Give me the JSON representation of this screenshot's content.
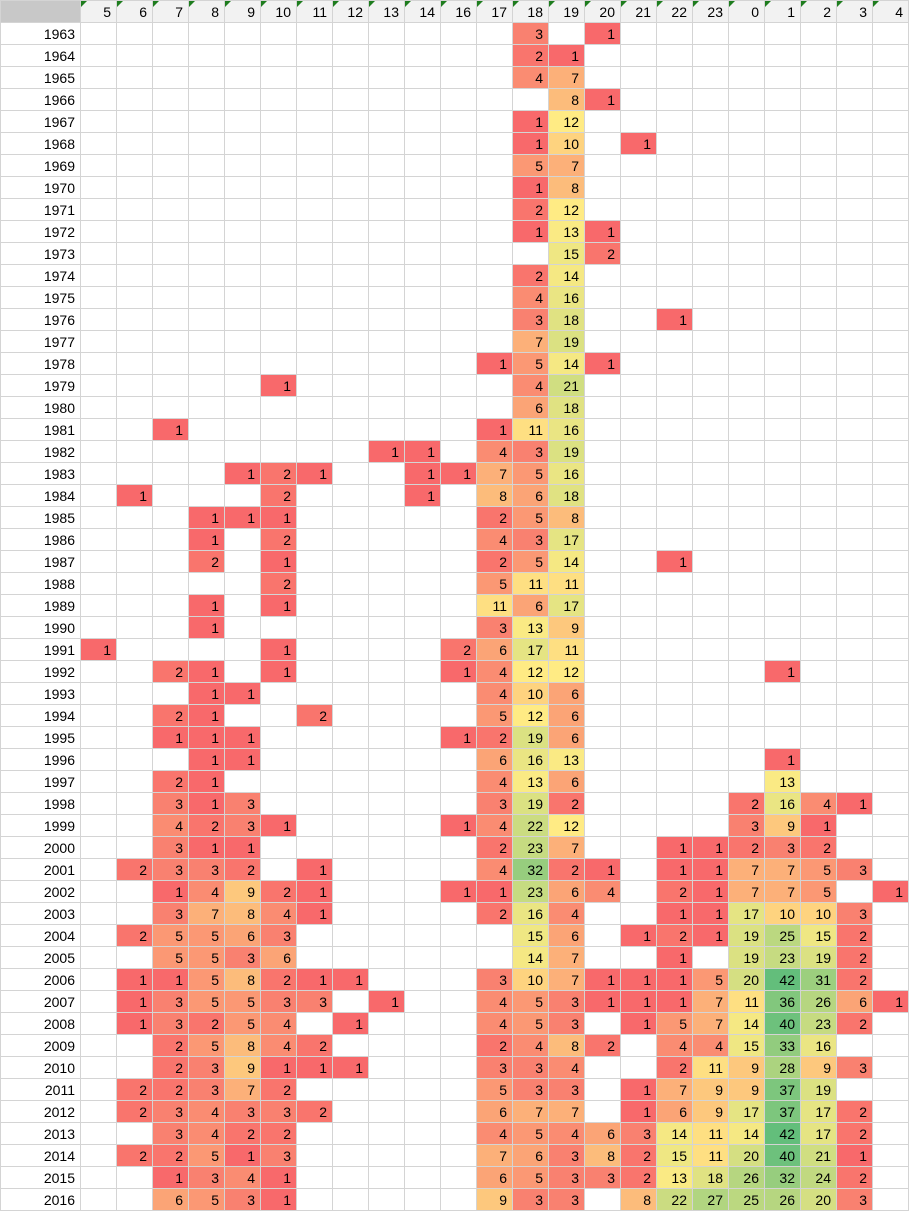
{
  "sheet": {
    "columns": [
      "5",
      "6",
      "7",
      "8",
      "9",
      "10",
      "11",
      "12",
      "13",
      "14",
      "16",
      "17",
      "18",
      "19",
      "20",
      "21",
      "22",
      "23",
      "0",
      "1",
      "2",
      "3",
      "4"
    ],
    "rows": [
      {
        "year": "1963",
        "v": {
          "18": 3,
          "20": 1
        }
      },
      {
        "year": "1964",
        "v": {
          "18": 2,
          "19": 1
        }
      },
      {
        "year": "1965",
        "v": {
          "18": 4,
          "19": 7
        }
      },
      {
        "year": "1966",
        "v": {
          "19": 8,
          "20": 1
        }
      },
      {
        "year": "1967",
        "v": {
          "18": 1,
          "19": 12
        }
      },
      {
        "year": "1968",
        "v": {
          "18": 1,
          "19": 10,
          "21": 1
        }
      },
      {
        "year": "1969",
        "v": {
          "18": 5,
          "19": 7
        }
      },
      {
        "year": "1970",
        "v": {
          "18": 1,
          "19": 8
        }
      },
      {
        "year": "1971",
        "v": {
          "18": 2,
          "19": 12
        }
      },
      {
        "year": "1972",
        "v": {
          "18": 1,
          "19": 13,
          "20": 1
        }
      },
      {
        "year": "1973",
        "v": {
          "19": 15,
          "20": 2
        }
      },
      {
        "year": "1974",
        "v": {
          "18": 2,
          "19": 14
        }
      },
      {
        "year": "1975",
        "v": {
          "18": 4,
          "19": 16
        }
      },
      {
        "year": "1976",
        "v": {
          "18": 3,
          "19": 18,
          "22": 1
        }
      },
      {
        "year": "1977",
        "v": {
          "18": 7,
          "19": 19
        }
      },
      {
        "year": "1978",
        "v": {
          "17": 1,
          "18": 5,
          "19": 14,
          "20": 1
        }
      },
      {
        "year": "1979",
        "v": {
          "10": 1,
          "18": 4,
          "19": 21
        }
      },
      {
        "year": "1980",
        "v": {
          "18": 6,
          "19": 18
        }
      },
      {
        "year": "1981",
        "v": {
          "7": 1,
          "17": 1,
          "18": 11,
          "19": 16
        }
      },
      {
        "year": "1982",
        "v": {
          "13": 1,
          "14": 1,
          "17": 4,
          "18": 3,
          "19": 19
        }
      },
      {
        "year": "1983",
        "v": {
          "9": 1,
          "10": 2,
          "11": 1,
          "14": 1,
          "16": 1,
          "17": 7,
          "18": 5,
          "19": 16
        }
      },
      {
        "year": "1984",
        "v": {
          "6": 1,
          "10": 2,
          "14": 1,
          "17": 8,
          "18": 6,
          "19": 18
        }
      },
      {
        "year": "1985",
        "v": {
          "8": 1,
          "9": 1,
          "10": 1,
          "17": 2,
          "18": 5,
          "19": 8
        }
      },
      {
        "year": "1986",
        "v": {
          "8": 1,
          "10": 2,
          "17": 4,
          "18": 3,
          "19": 17
        }
      },
      {
        "year": "1987",
        "v": {
          "8": 2,
          "10": 1,
          "17": 2,
          "18": 5,
          "19": 14,
          "22": 1
        }
      },
      {
        "year": "1988",
        "v": {
          "10": 2,
          "17": 5,
          "18": 11,
          "19": 11
        }
      },
      {
        "year": "1989",
        "v": {
          "8": 1,
          "10": 1,
          "17": 11,
          "18": 6,
          "19": 17
        }
      },
      {
        "year": "1990",
        "v": {
          "8": 1,
          "17": 3,
          "18": 13,
          "19": 9
        }
      },
      {
        "year": "1991",
        "v": {
          "5": 1,
          "10": 1,
          "16": 2,
          "17": 6,
          "18": 17,
          "19": 11
        }
      },
      {
        "year": "1992",
        "v": {
          "7": 2,
          "8": 1,
          "10": 1,
          "16": 1,
          "17": 4,
          "18": 12,
          "19": 12,
          "1": 1
        }
      },
      {
        "year": "1993",
        "v": {
          "8": 1,
          "9": 1,
          "17": 4,
          "18": 10,
          "19": 6
        }
      },
      {
        "year": "1994",
        "v": {
          "7": 2,
          "8": 1,
          "11": 2,
          "17": 5,
          "18": 12,
          "19": 6
        }
      },
      {
        "year": "1995",
        "v": {
          "7": 1,
          "8": 1,
          "9": 1,
          "16": 1,
          "17": 2,
          "18": 19,
          "19": 6
        }
      },
      {
        "year": "1996",
        "v": {
          "8": 1,
          "9": 1,
          "17": 6,
          "18": 16,
          "19": 13,
          "1": 1
        }
      },
      {
        "year": "1997",
        "v": {
          "7": 2,
          "8": 1,
          "17": 4,
          "18": 13,
          "19": 6,
          "1": 13
        }
      },
      {
        "year": "1998",
        "v": {
          "7": 3,
          "8": 1,
          "9": 3,
          "17": 3,
          "18": 19,
          "19": 2,
          "0": 2,
          "1": 16,
          "2": 4,
          "3": 1
        }
      },
      {
        "year": "1999",
        "v": {
          "7": 4,
          "8": 2,
          "9": 3,
          "10": 1,
          "16": 1,
          "17": 4,
          "18": 22,
          "19": 12,
          "0": 3,
          "1": 9,
          "2": 1
        }
      },
      {
        "year": "2000",
        "v": {
          "7": 3,
          "8": 1,
          "9": 1,
          "17": 2,
          "18": 23,
          "19": 7,
          "22": 1,
          "23": 1,
          "0": 2,
          "1": 3,
          "2": 2
        }
      },
      {
        "year": "2001",
        "v": {
          "6": 2,
          "7": 3,
          "8": 3,
          "9": 2,
          "11": 1,
          "17": 4,
          "18": 32,
          "19": 2,
          "20": 1,
          "22": 1,
          "23": 1,
          "0": 7,
          "1": 7,
          "2": 5,
          "3": 3
        }
      },
      {
        "year": "2002",
        "v": {
          "7": 1,
          "8": 4,
          "9": 9,
          "10": 2,
          "11": 1,
          "16": 1,
          "17": 1,
          "18": 23,
          "19": 6,
          "20": 4,
          "22": 2,
          "23": 1,
          "0": 7,
          "1": 7,
          "2": 5,
          "4": 1
        }
      },
      {
        "year": "2003",
        "v": {
          "7": 3,
          "8": 7,
          "9": 8,
          "10": 4,
          "11": 1,
          "17": 2,
          "18": 16,
          "19": 4,
          "22": 1,
          "23": 1,
          "0": 17,
          "1": 10,
          "2": 10,
          "3": 3
        }
      },
      {
        "year": "2004",
        "v": {
          "6": 2,
          "7": 5,
          "8": 5,
          "9": 6,
          "10": 3,
          "18": 15,
          "19": 6,
          "21": 1,
          "22": 2,
          "23": 1,
          "0": 19,
          "1": 25,
          "2": 15,
          "3": 2
        }
      },
      {
        "year": "2005",
        "v": {
          "7": 5,
          "8": 5,
          "9": 3,
          "10": 6,
          "18": 14,
          "19": 7,
          "22": 1,
          "0": 19,
          "1": 23,
          "2": 19,
          "3": 2
        }
      },
      {
        "year": "2006",
        "v": {
          "6": 1,
          "7": 1,
          "8": 5,
          "9": 8,
          "10": 2,
          "11": 1,
          "12": 1,
          "17": 3,
          "18": 10,
          "19": 7,
          "20": 1,
          "21": 1,
          "22": 1,
          "23": 5,
          "0": 20,
          "1": 42,
          "2": 31,
          "3": 2
        }
      },
      {
        "year": "2007",
        "v": {
          "6": 1,
          "7": 3,
          "8": 5,
          "9": 5,
          "10": 3,
          "11": 3,
          "13": 1,
          "17": 4,
          "18": 5,
          "19": 3,
          "20": 1,
          "21": 1,
          "22": 1,
          "23": 7,
          "0": 11,
          "1": 36,
          "2": 26,
          "3": 6,
          "4": 1
        }
      },
      {
        "year": "2008",
        "v": {
          "6": 1,
          "7": 3,
          "8": 2,
          "9": 5,
          "10": 4,
          "12": 1,
          "17": 4,
          "18": 5,
          "19": 3,
          "21": 1,
          "22": 5,
          "23": 7,
          "0": 14,
          "1": 40,
          "2": 23,
          "3": 2
        }
      },
      {
        "year": "2009",
        "v": {
          "7": 2,
          "8": 5,
          "9": 8,
          "10": 4,
          "11": 2,
          "17": 2,
          "18": 4,
          "19": 8,
          "20": 2,
          "22": 4,
          "23": 4,
          "0": 15,
          "1": 33,
          "2": 16
        }
      },
      {
        "year": "2010",
        "v": {
          "7": 2,
          "8": 3,
          "9": 9,
          "10": 1,
          "11": 1,
          "12": 1,
          "17": 3,
          "18": 3,
          "19": 4,
          "22": 2,
          "23": 11,
          "0": 9,
          "1": 28,
          "2": 9,
          "3": 3
        }
      },
      {
        "year": "2011",
        "v": {
          "6": 2,
          "7": 2,
          "8": 3,
          "9": 7,
          "10": 2,
          "17": 5,
          "18": 3,
          "19": 3,
          "21": 1,
          "22": 7,
          "23": 9,
          "0": 9,
          "1": 37,
          "2": 19
        }
      },
      {
        "year": "2012",
        "v": {
          "6": 2,
          "7": 3,
          "8": 4,
          "9": 3,
          "10": 3,
          "11": 2,
          "17": 6,
          "18": 7,
          "19": 7,
          "21": 1,
          "22": 6,
          "23": 9,
          "0": 17,
          "1": 37,
          "2": 17,
          "3": 2
        }
      },
      {
        "year": "2013",
        "v": {
          "7": 3,
          "8": 4,
          "9": 2,
          "10": 2,
          "17": 4,
          "18": 5,
          "19": 4,
          "20": 6,
          "21": 3,
          "22": 14,
          "23": 11,
          "0": 14,
          "1": 42,
          "2": 17,
          "3": 2
        }
      },
      {
        "year": "2014",
        "v": {
          "6": 2,
          "7": 2,
          "8": 5,
          "9": 1,
          "10": 3,
          "17": 7,
          "18": 6,
          "19": 3,
          "20": 8,
          "21": 2,
          "22": 15,
          "23": 11,
          "0": 20,
          "1": 40,
          "2": 21,
          "3": 1
        }
      },
      {
        "year": "2015",
        "v": {
          "7": 1,
          "8": 3,
          "9": 4,
          "10": 1,
          "17": 6,
          "18": 5,
          "19": 3,
          "20": 3,
          "21": 2,
          "22": 13,
          "23": 18,
          "0": 26,
          "1": 32,
          "2": 24,
          "3": 2
        }
      },
      {
        "year": "2016",
        "v": {
          "7": 6,
          "8": 5,
          "9": 3,
          "10": 1,
          "17": 9,
          "18": 3,
          "19": 3,
          "21": 8,
          "22": 22,
          "23": 27,
          "0": 25,
          "1": 26,
          "2": 20,
          "3": 3
        }
      }
    ]
  },
  "colors": {
    "min": "#f8696b",
    "mid": "#ffeb84",
    "max": "#63be7b",
    "gridline": "#d4d4d4",
    "header_bg": "#f2f2f2",
    "corner_bg": "#c8c8c8",
    "indicator": "#1e7d1e"
  }
}
